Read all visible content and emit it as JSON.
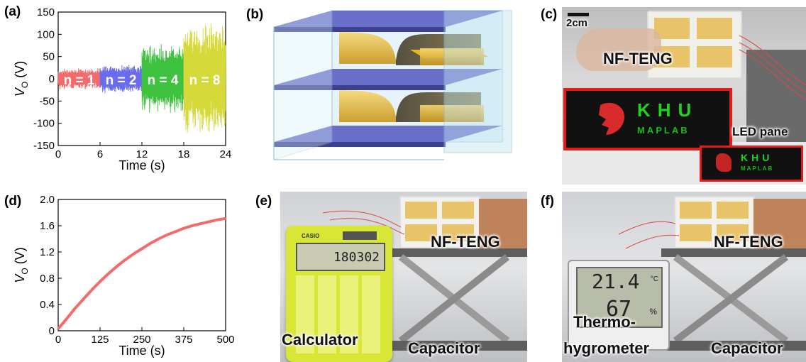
{
  "panels": {
    "a": "(a)",
    "b": "(b)",
    "c": "(c)",
    "d": "(d)",
    "e": "(e)",
    "f": "(f)"
  },
  "chart_data": [
    {
      "type": "line",
      "panel": "a",
      "ylabel_main": "V",
      "ylabel_sub": "O",
      "ylabel_unit": " (V)",
      "xlabel": "Time (s)",
      "xlim": [
        0,
        24
      ],
      "ylim": [
        -150,
        150
      ],
      "xticks": [
        0,
        6,
        12,
        18,
        24
      ],
      "yticks": [
        150,
        100,
        50,
        0,
        -50,
        -100,
        -150
      ],
      "series": [
        {
          "name": "n = 1",
          "x_range": [
            0,
            6
          ],
          "amplitude": 25,
          "color": "#f36b6b"
        },
        {
          "name": "n = 2",
          "x_range": [
            6,
            12
          ],
          "amplitude": 33,
          "color": "#6a6cf0"
        },
        {
          "name": "n = 4",
          "x_range": [
            12,
            18
          ],
          "amplitude": 80,
          "color": "#3fc23f"
        },
        {
          "name": "n = 8",
          "x_range": [
            18,
            24
          ],
          "amplitude": 130,
          "color": "#d6d93a"
        }
      ]
    },
    {
      "type": "line",
      "panel": "d",
      "ylabel_main": "V",
      "ylabel_sub": "O",
      "ylabel_unit": " (V)",
      "xlabel": "Time (s)",
      "xlim": [
        0,
        500
      ],
      "ylim": [
        0,
        2.0
      ],
      "xticks": [
        0,
        125,
        250,
        375,
        500
      ],
      "yticks": [
        2.0,
        1.6,
        1.2,
        0.8,
        0.4,
        0
      ],
      "series": [
        {
          "color": "#f36b6b",
          "x": [
            0,
            25,
            50,
            75,
            100,
            125,
            150,
            175,
            200,
            225,
            250,
            275,
            300,
            325,
            350,
            375,
            400,
            425,
            450,
            475,
            500
          ],
          "y": [
            0.03,
            0.18,
            0.34,
            0.48,
            0.62,
            0.75,
            0.87,
            0.98,
            1.08,
            1.17,
            1.25,
            1.33,
            1.4,
            1.46,
            1.51,
            1.56,
            1.6,
            1.63,
            1.66,
            1.69,
            1.71
          ]
        }
      ]
    }
  ],
  "photos": {
    "c": {
      "scale_bar": "2cm",
      "device": "NF-TENG",
      "led_panel": "LED pane",
      "logo_line1": "KHU",
      "logo_line2": "MAPLAB"
    },
    "e": {
      "device": "NF-TENG",
      "calculator": "Calculator",
      "capacitor": "Capacitor",
      "brand": "CASIO",
      "display": "180302"
    },
    "f": {
      "device": "NF-TENG",
      "meter_line1": "Thermo-",
      "meter_line2": "hygrometer",
      "capacitor": "Capacitor",
      "temp": "21.4",
      "temp_unit": "°C",
      "humidity": "67",
      "humidity_unit": "%"
    }
  },
  "colors": {
    "led_green": "#19c41f",
    "led_frame": "#e21b1b",
    "calculator_body": "#d8e635",
    "box_blue": "#bfe3ef",
    "plate_blue": "#4b4fb0",
    "film_gold": "#e8b923"
  }
}
